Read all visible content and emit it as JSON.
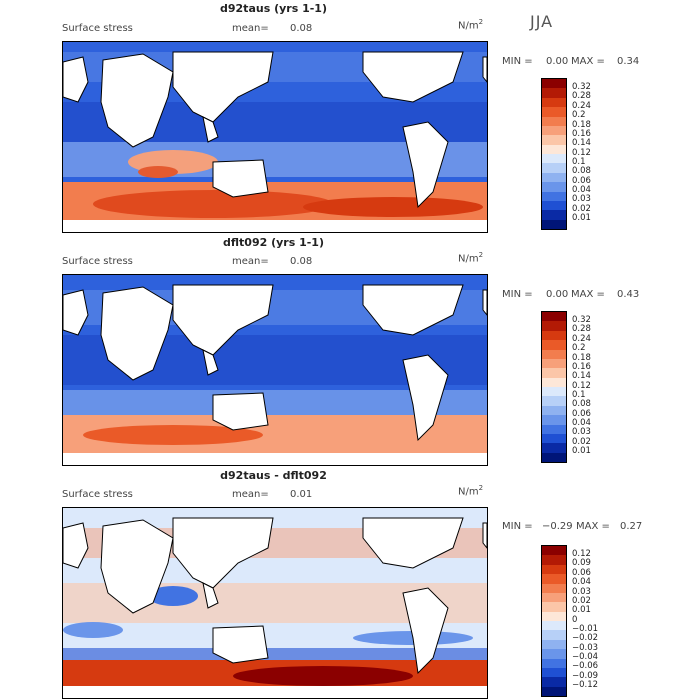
{
  "season": "JJA",
  "panels": [
    {
      "title": "d92taus (yrs 1-1)",
      "field": "Surface stress",
      "mean_label": "mean=",
      "mean": "0.08",
      "units_base": "N/m",
      "units_exp": "2",
      "min_label": "MIN =",
      "min": "0.00",
      "max_label": "MAX =",
      "max": "0.34",
      "colorbar": {
        "labels": [
          "0.32",
          "0.28",
          "0.24",
          "0.2",
          "0.18",
          "0.16",
          "0.14",
          "0.12",
          "0.1",
          "0.08",
          "0.06",
          "0.04",
          "0.03",
          "0.02",
          "0.01"
        ],
        "colors": [
          "#8b0000",
          "#b31a05",
          "#d63a10",
          "#ea5a28",
          "#f27d4e",
          "#f7a07a",
          "#fbc6a8",
          "#fde7d8",
          "#dce9fb",
          "#b7d0f7",
          "#8fb2f0",
          "#6a95ea",
          "#4173e2",
          "#1f50d3",
          "#0a2aa5",
          "#001578"
        ]
      }
    },
    {
      "title": "dflt092 (yrs 1-1)",
      "field": "Surface stress",
      "mean_label": "mean=",
      "mean": "0.08",
      "units_base": "N/m",
      "units_exp": "2",
      "min_label": "MIN =",
      "min": "0.00",
      "max_label": "MAX =",
      "max": "0.43",
      "colorbar": {
        "labels": [
          "0.32",
          "0.28",
          "0.24",
          "0.2",
          "0.18",
          "0.16",
          "0.14",
          "0.12",
          "0.1",
          "0.08",
          "0.06",
          "0.04",
          "0.03",
          "0.02",
          "0.01"
        ],
        "colors": [
          "#8b0000",
          "#b31a05",
          "#d63a10",
          "#ea5a28",
          "#f27d4e",
          "#f7a07a",
          "#fbc6a8",
          "#fde7d8",
          "#dce9fb",
          "#b7d0f7",
          "#8fb2f0",
          "#6a95ea",
          "#4173e2",
          "#1f50d3",
          "#0a2aa5",
          "#001578"
        ]
      }
    },
    {
      "title": "d92taus - dflt092",
      "field": "Surface stress",
      "mean_label": "mean=",
      "mean": "0.01",
      "units_base": "N/m",
      "units_exp": "2",
      "min_label": "MIN =",
      "min": "−0.29",
      "max_label": "MAX =",
      "max": "0.27",
      "colorbar": {
        "labels": [
          "0.12",
          "0.09",
          "0.06",
          "0.04",
          "0.03",
          "0.02",
          "0.01",
          "0",
          "−0.01",
          "−0.02",
          "−0.03",
          "−0.04",
          "−0.06",
          "−0.09",
          "−0.12"
        ],
        "colors": [
          "#8b0000",
          "#b31a05",
          "#d63a10",
          "#ea5a28",
          "#f27d4e",
          "#f7a07a",
          "#fbc6a8",
          "#fde7d8",
          "#dce9fb",
          "#b7d0f7",
          "#8fb2f0",
          "#6a95ea",
          "#4173e2",
          "#1f50d3",
          "#0a2aa5",
          "#001578"
        ]
      }
    }
  ]
}
